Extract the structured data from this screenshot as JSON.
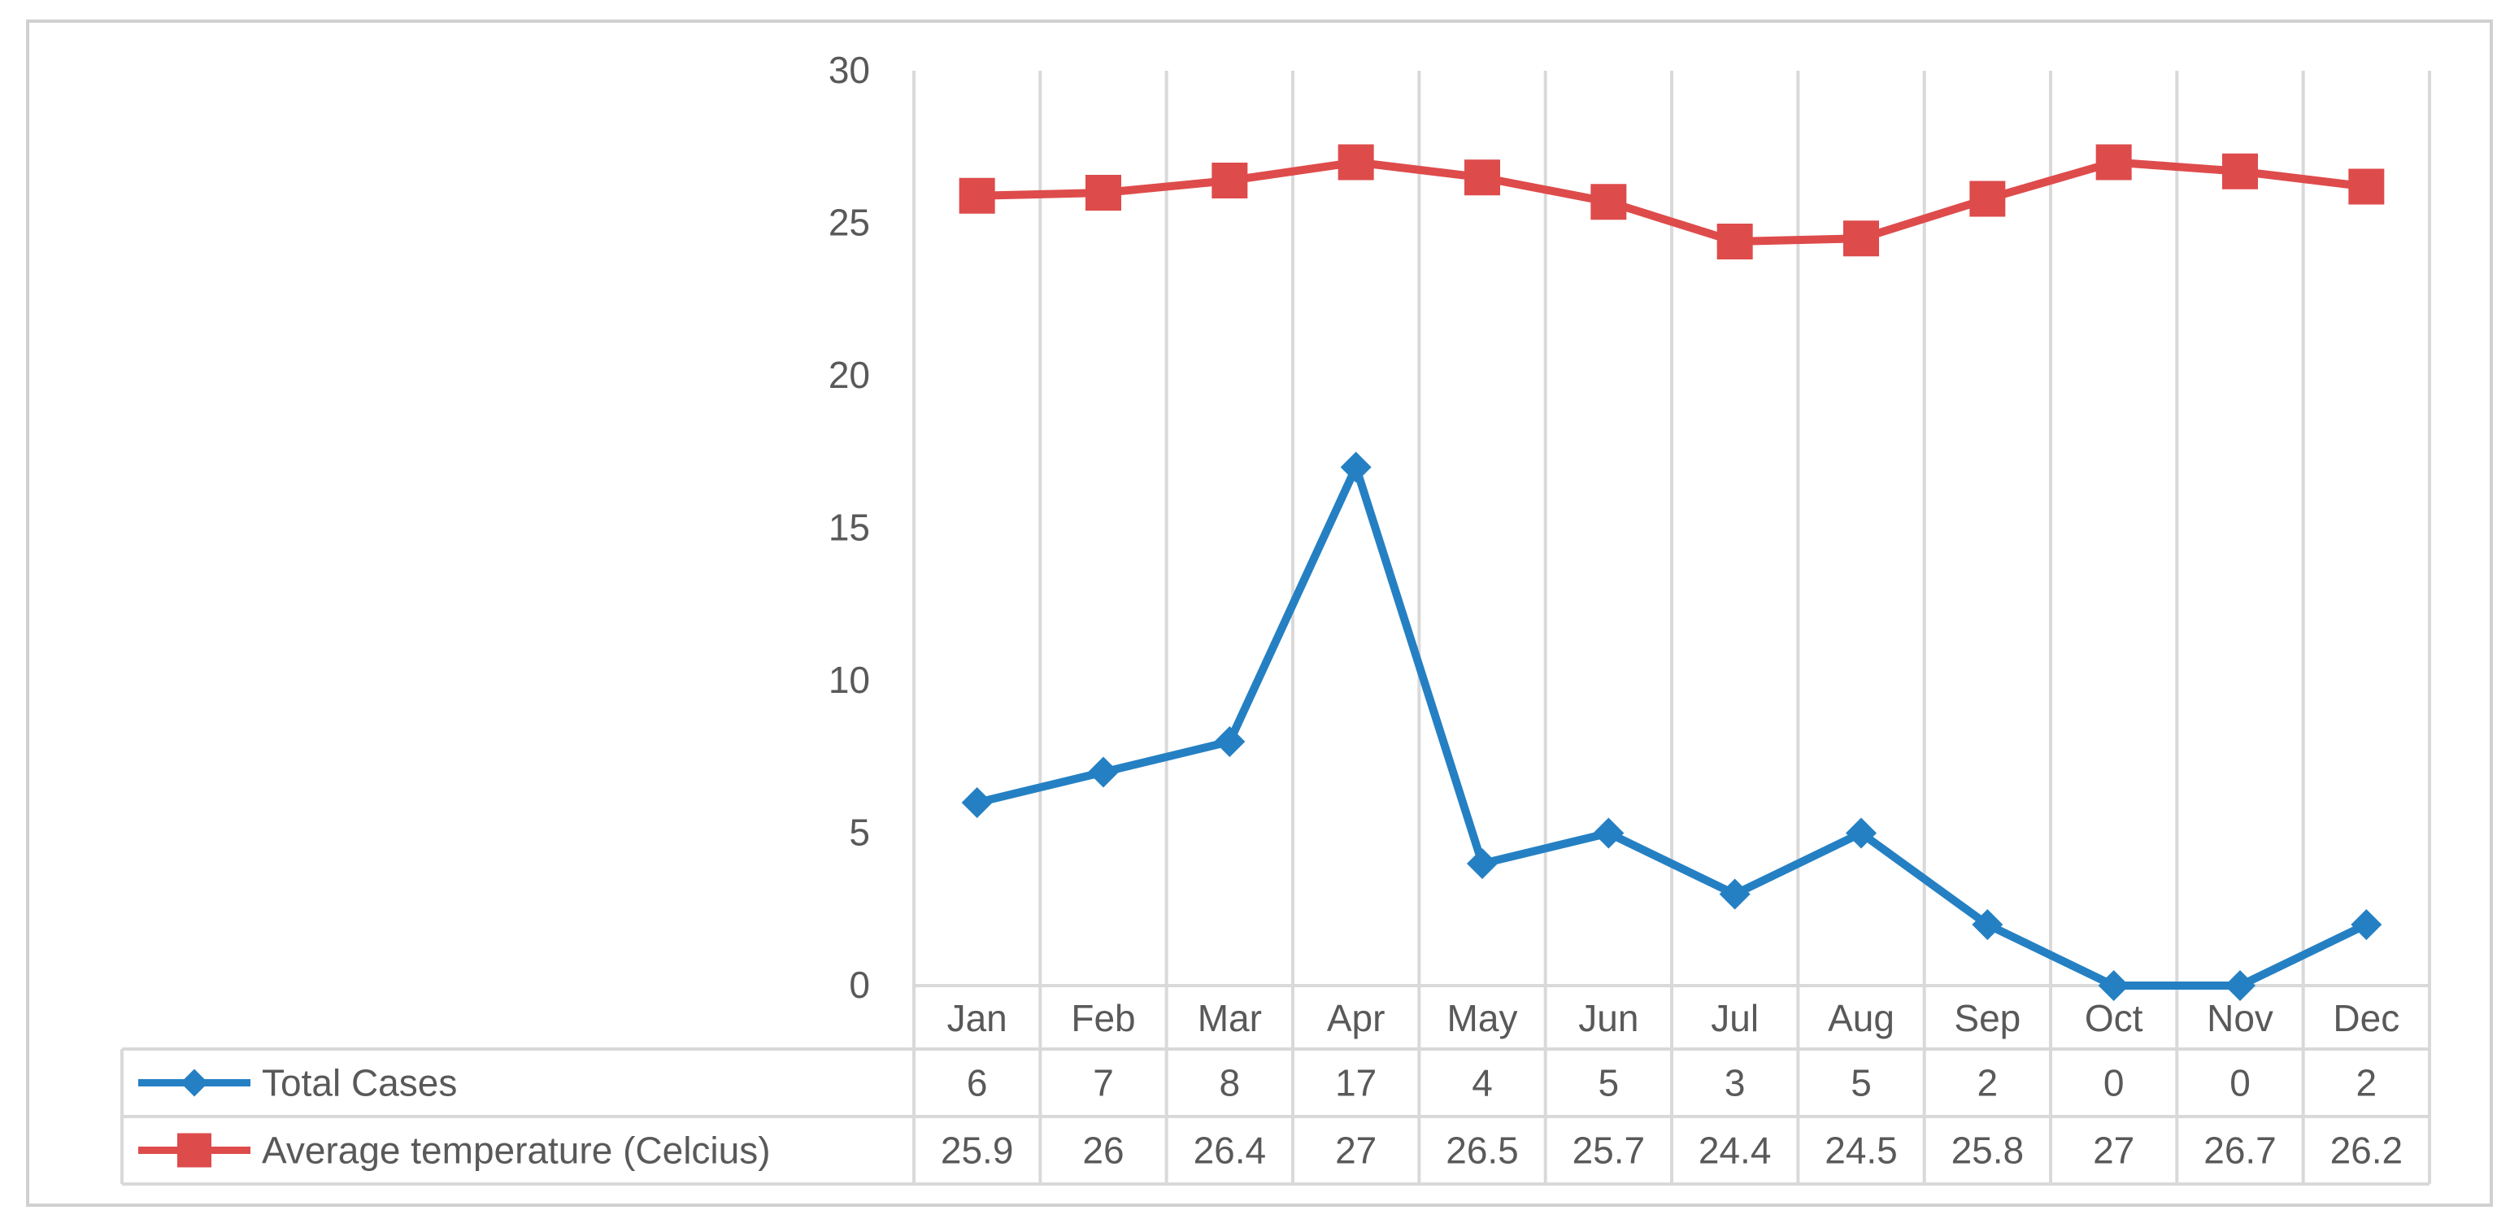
{
  "chart_data": {
    "type": "line",
    "title": "",
    "xlabel": "",
    "ylabel": "",
    "categories": [
      "Jan",
      "Feb",
      "Mar",
      "Apr",
      "May",
      "Jun",
      "Jul",
      "Aug",
      "Sep",
      "Oct",
      "Nov",
      "Dec"
    ],
    "ylim": [
      0,
      30
    ],
    "yticks": [
      0,
      5,
      10,
      15,
      20,
      25,
      30
    ],
    "grid": "vertical",
    "legend": "data-table",
    "series": [
      {
        "name": "Total Cases",
        "color": "#2580c3",
        "marker": "diamond",
        "values": [
          6,
          7,
          8,
          17,
          4,
          5,
          3,
          5,
          2,
          0,
          0,
          2
        ],
        "labels": [
          "6",
          "7",
          "8",
          "17",
          "4",
          "5",
          "3",
          "5",
          "2",
          "0",
          "0",
          "2"
        ]
      },
      {
        "name": "Average temperature (Celcius)",
        "color": "#de4b4b",
        "marker": "square",
        "values": [
          25.9,
          26,
          26.4,
          27,
          26.5,
          25.7,
          24.4,
          24.5,
          25.8,
          27,
          26.7,
          26.2
        ],
        "labels": [
          "25.9",
          "26",
          "26.4",
          "27",
          "26.5",
          "25.7",
          "24.4",
          "24.5",
          "25.8",
          "27",
          "26.7",
          "26.2"
        ]
      }
    ]
  }
}
